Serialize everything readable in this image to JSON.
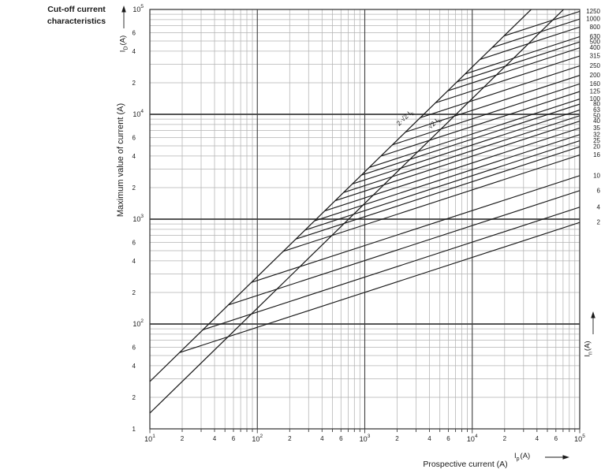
{
  "title": "Cut-off current characteristics",
  "axis_titles": {
    "y": "Maximum value of current (A)",
    "x": "Prospective current (A)"
  },
  "axis_symbols": {
    "left": {
      "base": "I",
      "sub": "D",
      "unit": "(A)"
    },
    "right": {
      "base": "I",
      "sub": "n",
      "unit": "(A)"
    },
    "x": {
      "base": "I",
      "sub": "p",
      "unit": "(A)"
    }
  },
  "chart_data": {
    "type": "line",
    "title": "Cut-off current characteristics",
    "xlabel": "Prospective current (A)",
    "ylabel": "Maximum value of current (A)",
    "x_scale": "log",
    "y_scale": "log",
    "xlim": [
      10,
      100000
    ],
    "ylim": [
      10,
      100000
    ],
    "grid": true,
    "x_decades": [
      1,
      2,
      3,
      4,
      5
    ],
    "y_decades": [
      2,
      3,
      4,
      5
    ],
    "y_bottom_label": "1",
    "minor_labeled_multipliers": [
      2,
      4,
      6
    ],
    "reference_lines": [
      {
        "name": "peak-asymmetrical",
        "factor": 2.8284,
        "label_main": "2·√2 I",
        "label_sub": "k"
      },
      {
        "name": "peak-symmetrical",
        "factor": 1.4142,
        "label_main": "√2 I",
        "label_sub": "k"
      }
    ],
    "curve_model": {
      "description": "Each rated-current curve branches off the 2·√2 envelope line and rises as a straight log-log line of slope 1/3 to Ip = 100 kA",
      "slope_loglog": 0.3333,
      "x_end": 100000
    },
    "series": [
      {
        "rating": "1250",
        "cutoff_current_at_100kA": 96000
      },
      {
        "rating": "1000",
        "cutoff_current_at_100kA": 81000
      },
      {
        "rating": "800",
        "cutoff_current_at_100kA": 68000
      },
      {
        "rating": "630",
        "cutoff_current_at_100kA": 55000
      },
      {
        "rating": "500",
        "cutoff_current_at_100kA": 49000
      },
      {
        "rating": "400",
        "cutoff_current_at_100kA": 43000
      },
      {
        "rating": "315",
        "cutoff_current_at_100kA": 36000
      },
      {
        "rating": "250",
        "cutoff_current_at_100kA": 29000
      },
      {
        "rating": "200",
        "cutoff_current_at_100kA": 23500
      },
      {
        "rating": "160",
        "cutoff_current_at_100kA": 19500
      },
      {
        "rating": "125",
        "cutoff_current_at_100kA": 16500
      },
      {
        "rating": "100",
        "cutoff_current_at_100kA": 14000
      },
      {
        "rating": "80",
        "cutoff_current_at_100kA": 12500
      },
      {
        "rating": "63",
        "cutoff_current_at_100kA": 11000
      },
      {
        "rating": "50",
        "cutoff_current_at_100kA": 9700
      },
      {
        "rating": "40",
        "cutoff_current_at_100kA": 8600
      },
      {
        "rating": "35",
        "cutoff_current_at_100kA": 7400
      },
      {
        "rating": "32",
        "cutoff_current_at_100kA": 6400
      },
      {
        "rating": "25",
        "cutoff_current_at_100kA": 5600
      },
      {
        "rating": "20",
        "cutoff_current_at_100kA": 4900
      },
      {
        "rating": "16",
        "cutoff_current_at_100kA": 4100
      },
      {
        "rating": "10",
        "cutoff_current_at_100kA": 2600
      },
      {
        "rating": "6",
        "cutoff_current_at_100kA": 1870
      },
      {
        "rating": "4",
        "cutoff_current_at_100kA": 1300
      },
      {
        "rating": "2",
        "cutoff_current_at_100kA": 930
      }
    ],
    "colors": {
      "curve": "#1b1b1b",
      "grid_minor": "#b3b3b3",
      "grid_major": "#3d3d3d",
      "text": "#1a1a1a",
      "background": "#ffffff"
    }
  }
}
